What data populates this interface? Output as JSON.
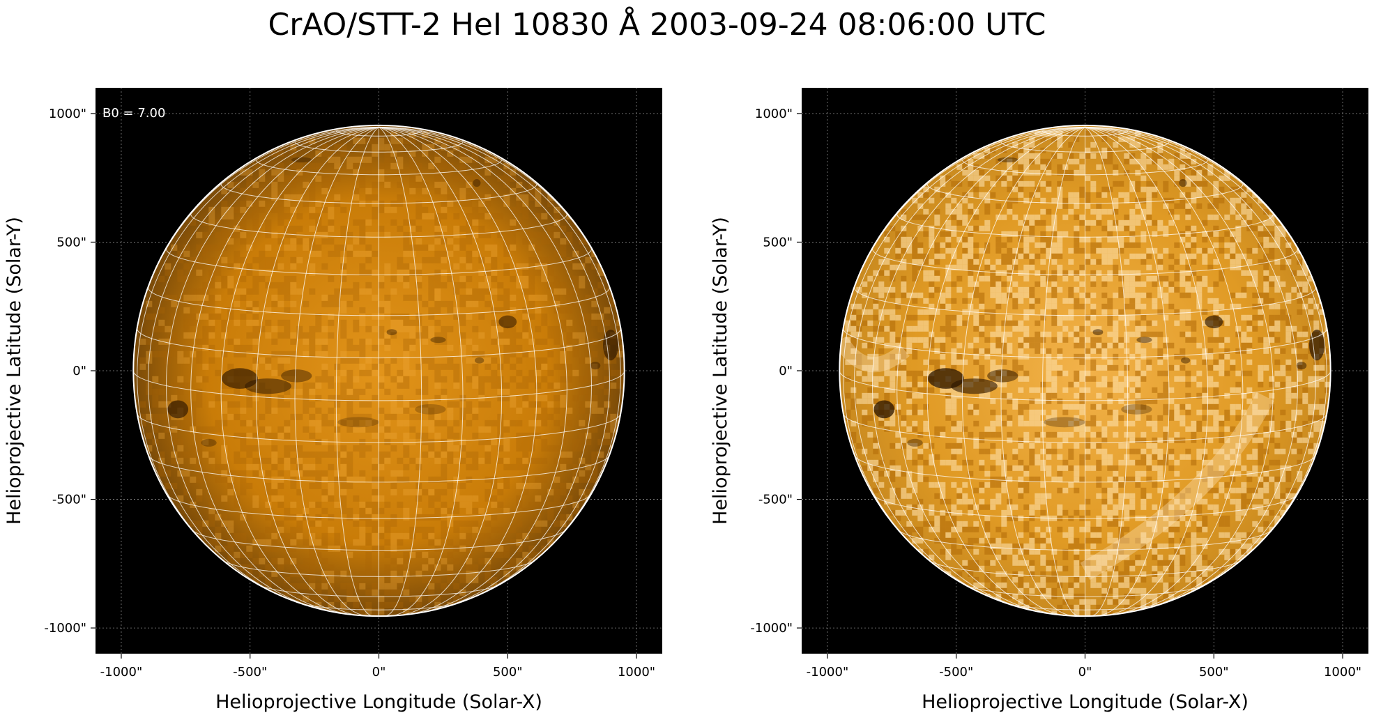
{
  "title": "CrAO/STT-2 HeI 10830 Å 2003-09-24 08:06:00 UTC",
  "annotation": "B0 = 7.00",
  "colors": {
    "background": "#000000",
    "disk_left_base": "#c97c08",
    "disk_right_base": "#e09a24",
    "grid": "#ffffff"
  },
  "panels": [
    {
      "name": "left",
      "style": "smooth",
      "xlabel": "Helioprojective Longitude (Solar-X)",
      "ylabel": "Helioprojective Latitude (Solar-Y)",
      "x_ticks": [
        "-1000\"",
        "-500\"",
        "0\"",
        "500\"",
        "1000\""
      ],
      "y_ticks": [
        "1000\"",
        "500\"",
        "0\"",
        "-500\"",
        "-1000\""
      ],
      "xlim": [
        -1100,
        1100
      ],
      "ylim": [
        -1100,
        1100
      ]
    },
    {
      "name": "right",
      "style": "enhanced",
      "xlabel": "Helioprojective Longitude (Solar-X)",
      "ylabel": "Helioprojective Latitude (Solar-Y)",
      "x_ticks": [
        "-1000\"",
        "-500\"",
        "0\"",
        "500\"",
        "1000\""
      ],
      "y_ticks": [
        "1000\"",
        "500\"",
        "0\"",
        "-500\"",
        "-1000\""
      ],
      "xlim": [
        -1100,
        1100
      ],
      "ylim": [
        -1100,
        1100
      ]
    }
  ],
  "solar_disk": {
    "radius_arcsec": 953,
    "b0_deg": 7.0,
    "lon_grid_step_deg": 10,
    "lat_grid_step_deg": 10
  }
}
